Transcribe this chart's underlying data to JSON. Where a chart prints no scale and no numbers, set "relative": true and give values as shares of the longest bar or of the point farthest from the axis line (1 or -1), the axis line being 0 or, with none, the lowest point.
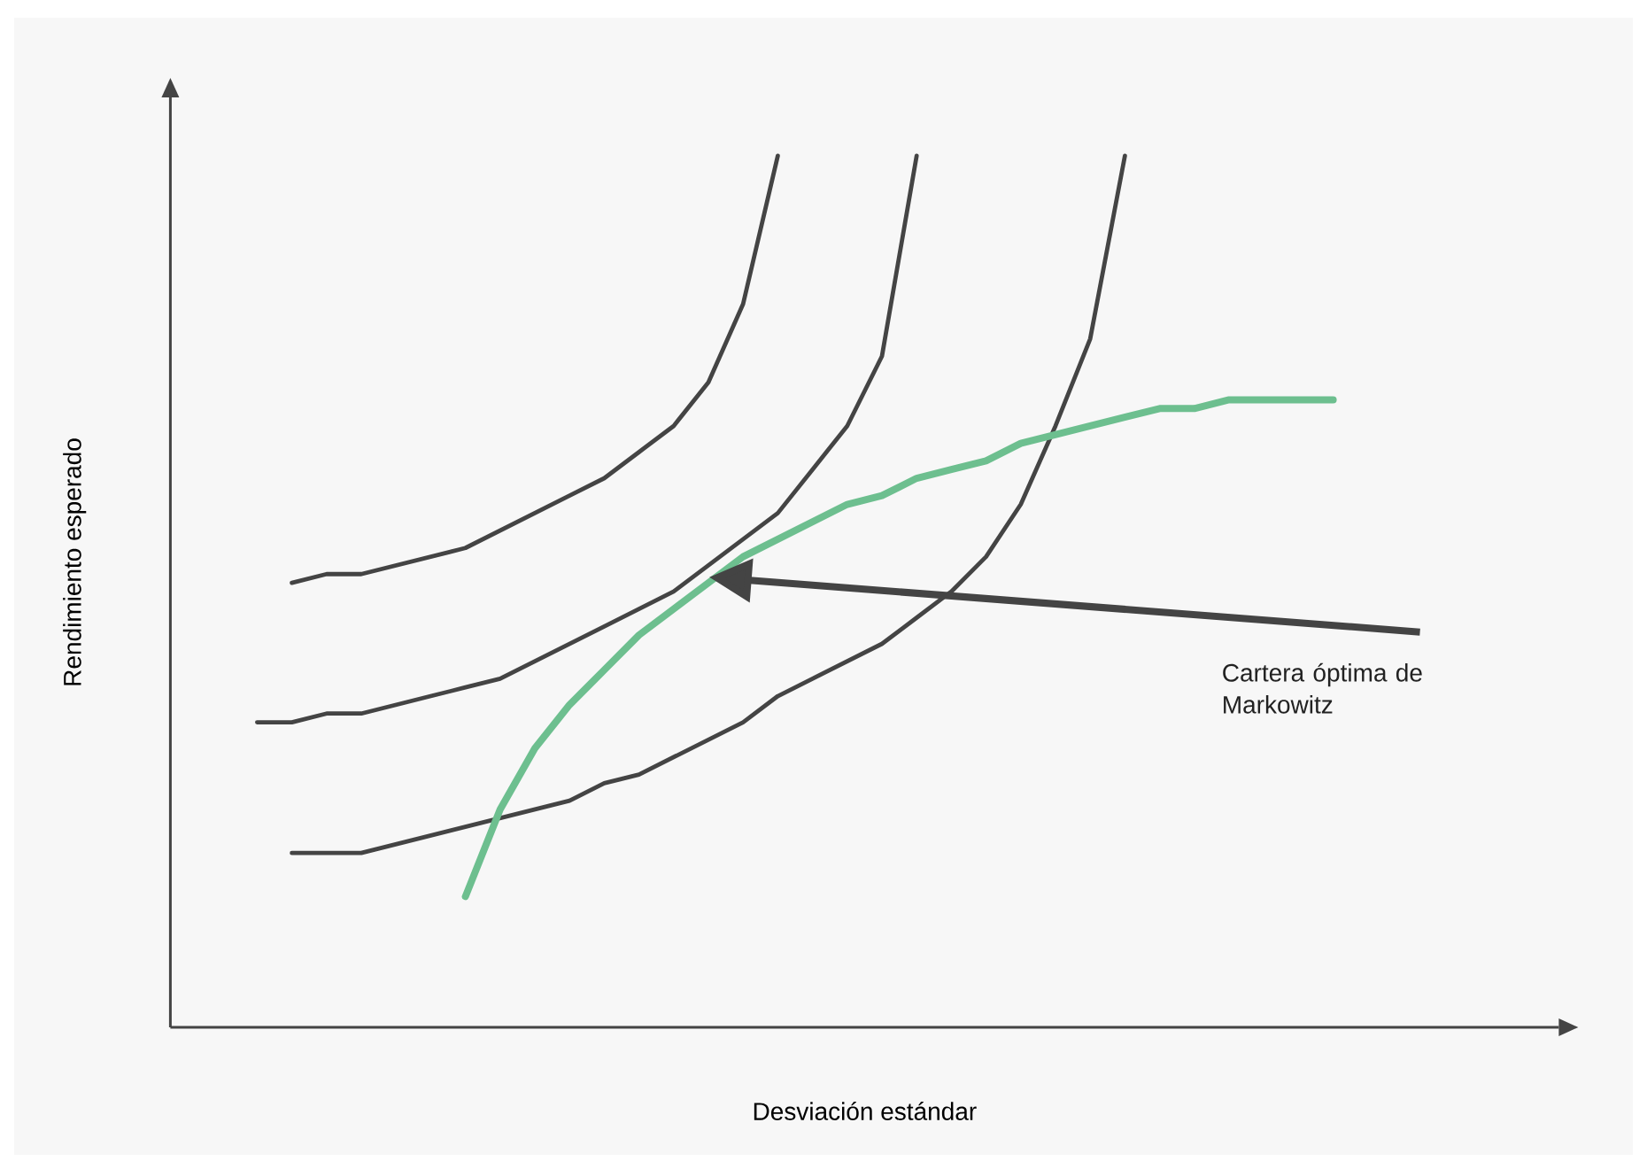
{
  "chart_data": {
    "type": "line",
    "relative": true,
    "xlabel": "Desviación estándar",
    "ylabel": "Rendimiento esperado",
    "categories": [
      null,
      null,
      null,
      null,
      null,
      null,
      null,
      null,
      null,
      null,
      null,
      null,
      null,
      null,
      null,
      null,
      null,
      null,
      null,
      null,
      null,
      null,
      null,
      null,
      null,
      null,
      null,
      null,
      null,
      null,
      null,
      null,
      null,
      null,
      null,
      null,
      null,
      null,
      null,
      null
    ],
    "series": [
      {
        "color": "#444444",
        "values": [
          null,
          null,
          null,
          0.51,
          0.52,
          0.52,
          0.53,
          0.54,
          0.55,
          0.57,
          0.59,
          0.61,
          0.63,
          0.66,
          0.69,
          0.74,
          0.83,
          1.0,
          null,
          null,
          null,
          null,
          null,
          null,
          null,
          null,
          null,
          null,
          null,
          null,
          null,
          null,
          null,
          null,
          null,
          null,
          null,
          null,
          null,
          null
        ]
      },
      {
        "color": "#444444",
        "values": [
          null,
          null,
          0.35,
          0.35,
          0.36,
          0.36,
          0.37,
          0.38,
          0.39,
          0.4,
          0.42,
          0.44,
          0.46,
          0.48,
          0.5,
          0.53,
          0.56,
          0.59,
          0.64,
          0.69,
          0.77,
          1.0,
          null,
          null,
          null,
          null,
          null,
          null,
          null,
          null,
          null,
          null,
          null,
          null,
          null,
          null,
          null,
          null,
          null,
          null
        ]
      },
      {
        "color": "#444444",
        "values": [
          null,
          null,
          null,
          0.2,
          0.2,
          0.2,
          0.21,
          0.22,
          0.23,
          0.24,
          0.25,
          0.26,
          0.28,
          0.29,
          0.31,
          0.33,
          0.35,
          0.38,
          0.4,
          0.42,
          0.44,
          0.47,
          0.5,
          0.54,
          0.6,
          0.69,
          0.79,
          1.0,
          null,
          null,
          null,
          null,
          null,
          null,
          null,
          null,
          null,
          null,
          null,
          null
        ]
      },
      {
        "color": "#6dbf8f",
        "values": [
          null,
          null,
          null,
          null,
          null,
          null,
          null,
          null,
          0.15,
          0.25,
          0.32,
          0.37,
          0.41,
          0.45,
          0.48,
          0.51,
          0.54,
          0.56,
          0.58,
          0.6,
          0.61,
          0.63,
          0.64,
          0.65,
          0.67,
          0.68,
          0.69,
          0.7,
          0.71,
          0.71,
          0.72,
          0.72,
          0.72,
          0.72,
          null,
          null,
          null,
          null,
          null,
          null
        ]
      }
    ],
    "annotations": [
      "Cartera óptima de Markowitz"
    ],
    "line_style": "solid",
    "marker": "none"
  }
}
